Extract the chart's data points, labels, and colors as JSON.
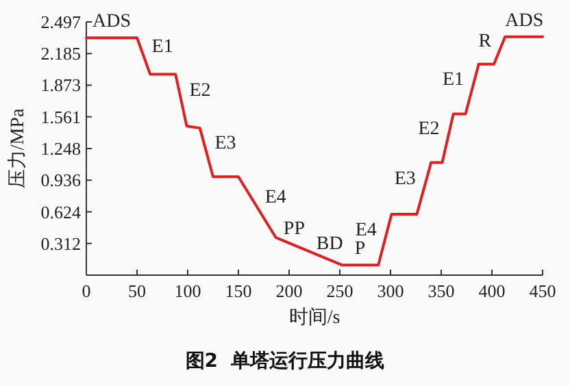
{
  "chart_data": {
    "type": "line",
    "title": "图2  单塔运行压力曲线",
    "xlabel": "时间/s",
    "ylabel": "压力/MPa",
    "x": [
      0,
      50,
      63,
      88,
      99,
      112,
      125,
      150,
      187,
      252,
      288,
      301,
      326,
      340,
      351,
      362,
      374,
      387,
      402,
      413,
      450
    ],
    "series": [
      {
        "color": "#e02020",
        "values": [
          2.34,
          2.34,
          1.98,
          1.98,
          1.47,
          1.45,
          0.97,
          0.97,
          0.37,
          0.1,
          0.1,
          0.6,
          0.6,
          1.11,
          1.11,
          1.59,
          1.59,
          2.08,
          2.08,
          2.35,
          2.35
        ]
      }
    ],
    "xlim": [
      0,
      450
    ],
    "ylim": [
      0,
      2.497
    ],
    "xticks": [
      0,
      50,
      100,
      150,
      200,
      250,
      300,
      350,
      400,
      450
    ],
    "yticks": [
      0.312,
      0.624,
      0.936,
      1.248,
      1.561,
      1.873,
      2.185,
      2.497
    ],
    "grid": false,
    "marker": "none",
    "line_style": "solid",
    "annotations": [
      {
        "text": "ADS",
        "x": 25,
        "y": 2.34
      },
      {
        "text": "E1",
        "x": 56.5,
        "y": 2.16
      },
      {
        "text": "E2",
        "x": 93.5,
        "y": 1.725
      },
      {
        "text": "E3",
        "x": 118.5,
        "y": 1.21
      },
      {
        "text": "E4",
        "x": 168,
        "y": 0.678
      },
      {
        "text": "PP",
        "x": 205,
        "y": 0.295
      },
      {
        "text": "BD",
        "x": 240,
        "y": 0.15
      },
      {
        "text": "P",
        "x": 270,
        "y": 0.1
      },
      {
        "text": "E4",
        "x": 294.5,
        "y": 0.35
      },
      {
        "text": "E3",
        "x": 333,
        "y": 0.855
      },
      {
        "text": "E2",
        "x": 356.5,
        "y": 1.35
      },
      {
        "text": "E1",
        "x": 380.5,
        "y": 1.835
      },
      {
        "text": "R",
        "x": 407.5,
        "y": 2.215
      },
      {
        "text": "ADS",
        "x": 432,
        "y": 2.35
      }
    ]
  }
}
